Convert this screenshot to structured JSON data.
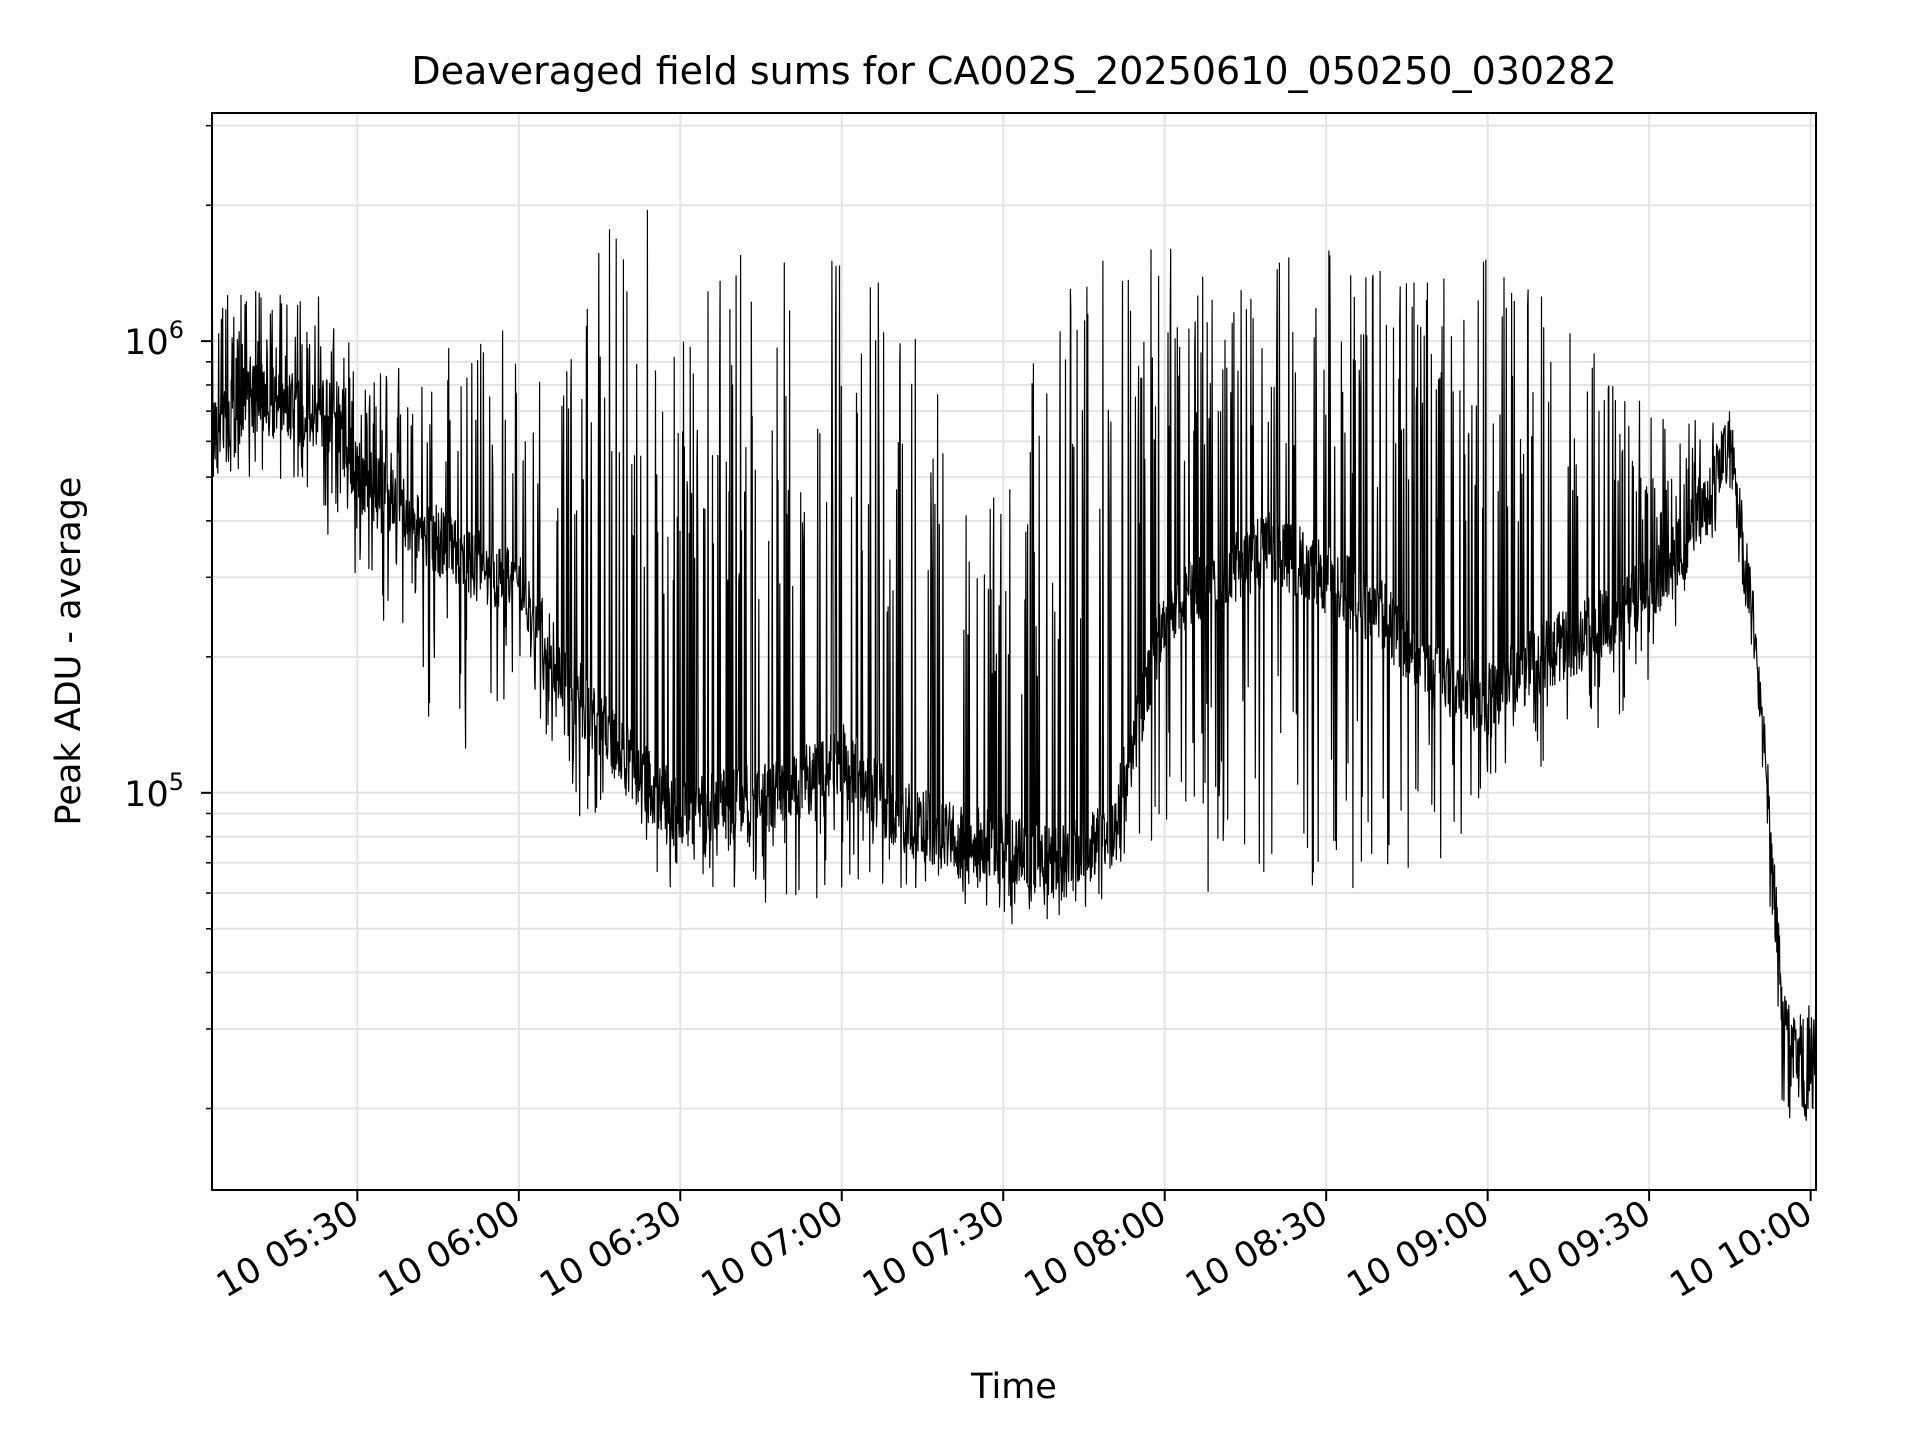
{
  "chart_data": {
    "type": "line",
    "title": "Deaveraged field sums for CA002S_20250610_050250_030282",
    "xlabel": "Time",
    "ylabel": "Peak ADU - average",
    "xlim": [
      "2025-06-10 05:03:00",
      "2025-06-10 10:01:00"
    ],
    "ylim": [
      13200,
      3200000
    ],
    "yscale": "log",
    "grid": true,
    "x_ticks": [
      "2025-06-10 05:30",
      "2025-06-10 06:00",
      "2025-06-10 06:30",
      "2025-06-10 07:00",
      "2025-06-10 07:30",
      "2025-06-10 08:00",
      "2025-06-10 08:30",
      "2025-06-10 09:00",
      "2025-06-10 09:30",
      "2025-06-10 10:00"
    ],
    "x_tick_labels": [
      "10 05:30",
      "10 06:00",
      "10 06:30",
      "10 07:00",
      "10 07:30",
      "10 08:00",
      "10 08:30",
      "10 09:00",
      "10 09:30",
      "10 10:00"
    ],
    "y_major_ticks": [
      100000,
      1000000
    ],
    "y_tick_labels": [
      {
        "base": "10",
        "exp": "5"
      },
      {
        "base": "10",
        "exp": "6"
      }
    ],
    "y_minor_ticks": [
      20000,
      30000,
      40000,
      50000,
      60000,
      70000,
      80000,
      90000,
      200000,
      300000,
      400000,
      500000,
      600000,
      700000,
      800000,
      900000,
      2000000,
      3000000
    ],
    "series": [
      {
        "color": "#000000",
        "x": [
          "2025-06-10 05:03:00",
          "2025-06-10 05:10:00",
          "2025-06-10 05:20:00",
          "2025-06-10 05:25:00",
          "2025-06-10 05:30:00",
          "2025-06-10 05:40:00",
          "2025-06-10 05:50:00",
          "2025-06-10 06:00:00",
          "2025-06-10 06:10:00",
          "2025-06-10 06:20:00",
          "2025-06-10 06:30:00",
          "2025-06-10 06:40:00",
          "2025-06-10 06:50:00",
          "2025-06-10 07:00:00",
          "2025-06-10 07:10:00",
          "2025-06-10 07:20:00",
          "2025-06-10 07:30:00",
          "2025-06-10 07:40:00",
          "2025-06-10 07:50:00",
          "2025-06-10 08:00:00",
          "2025-06-10 08:10:00",
          "2025-06-10 08:20:00",
          "2025-06-10 08:30:00",
          "2025-06-10 08:40:00",
          "2025-06-10 08:50:00",
          "2025-06-10 09:00:00",
          "2025-06-10 09:10:00",
          "2025-06-10 09:20:00",
          "2025-06-10 09:30:00",
          "2025-06-10 09:35:00",
          "2025-06-10 09:40:00",
          "2025-06-10 09:45:00",
          "2025-06-10 09:50:00",
          "2025-06-10 09:52:00",
          "2025-06-10 09:55:00",
          "2025-06-10 09:58:00",
          "2025-06-10 10:00:00",
          "2025-06-10 10:01:00"
        ],
        "y": [
          620000,
          750000,
          700000,
          680000,
          500000,
          400000,
          330000,
          280000,
          170000,
          120000,
          90000,
          95000,
          100000,
          120000,
          90000,
          80000,
          75000,
          70000,
          80000,
          250000,
          300000,
          350000,
          300000,
          250000,
          180000,
          160000,
          200000,
          230000,
          280000,
          330000,
          420000,
          600000,
          200000,
          100000,
          30000,
          25000,
          20000,
          30000
        ],
        "spike_max": [
          1400000,
          1300000,
          1250000,
          1300000,
          900000,
          900000,
          1000000,
          1100000,
          1300000,
          2400000,
          1600000,
          1600000,
          1500000,
          1600000,
          1300000,
          800000,
          450000,
          1600000,
          1700000,
          1600000,
          1600000,
          1650000,
          1600000,
          1500000,
          1400000,
          1600000,
          1500000,
          950000,
          700000,
          650000,
          680000,
          640000,
          200000,
          100000,
          33000,
          35000,
          34000,
          35000
        ],
        "spike_min": [
          500000,
          500000,
          480000,
          310000,
          300000,
          170000,
          110000,
          180000,
          90000,
          80000,
          52000,
          60000,
          55000,
          60000,
          60000,
          60000,
          50000,
          50000,
          60000,
          60000,
          60000,
          60000,
          60000,
          60000,
          65000,
          95000,
          110000,
          130000,
          170000,
          200000,
          350000,
          400000,
          180000,
          60000,
          17000,
          15500,
          18000,
          22000
        ]
      }
    ]
  }
}
